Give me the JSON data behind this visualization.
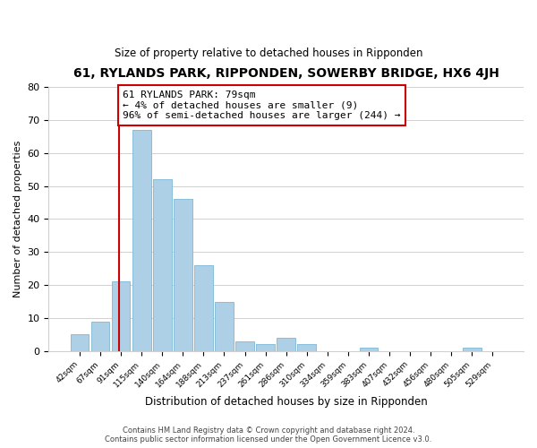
{
  "title": "61, RYLANDS PARK, RIPPONDEN, SOWERBY BRIDGE, HX6 4JH",
  "subtitle": "Size of property relative to detached houses in Ripponden",
  "xlabel": "Distribution of detached houses by size in Ripponden",
  "ylabel": "Number of detached properties",
  "bar_color": "#aed0e6",
  "bar_edge_color": "#7ab8d4",
  "annotation_text_line1": "61 RYLANDS PARK: 79sqm",
  "annotation_text_line2": "← 4% of detached houses are smaller (9)",
  "annotation_text_line3": "96% of semi-detached houses are larger (244) →",
  "annotation_box_color": "#ffffff",
  "annotation_box_edge": "#cc0000",
  "vertical_line_color": "#cc0000",
  "categories": [
    "42sqm",
    "67sqm",
    "91sqm",
    "115sqm",
    "140sqm",
    "164sqm",
    "188sqm",
    "213sqm",
    "237sqm",
    "261sqm",
    "286sqm",
    "310sqm",
    "334sqm",
    "359sqm",
    "383sqm",
    "407sqm",
    "432sqm",
    "456sqm",
    "480sqm",
    "505sqm",
    "529sqm"
  ],
  "values": [
    5,
    9,
    21,
    67,
    52,
    46,
    26,
    15,
    3,
    2,
    4,
    2,
    0,
    0,
    1,
    0,
    0,
    0,
    0,
    1,
    0
  ],
  "ylim": [
    0,
    80
  ],
  "yticks": [
    0,
    10,
    20,
    30,
    40,
    50,
    60,
    70,
    80
  ],
  "footer_line1": "Contains HM Land Registry data © Crown copyright and database right 2024.",
  "footer_line2": "Contains public sector information licensed under the Open Government Licence v3.0.",
  "bg_color": "#ffffff",
  "grid_color": "#d0d0d0",
  "vline_x": 1.93
}
